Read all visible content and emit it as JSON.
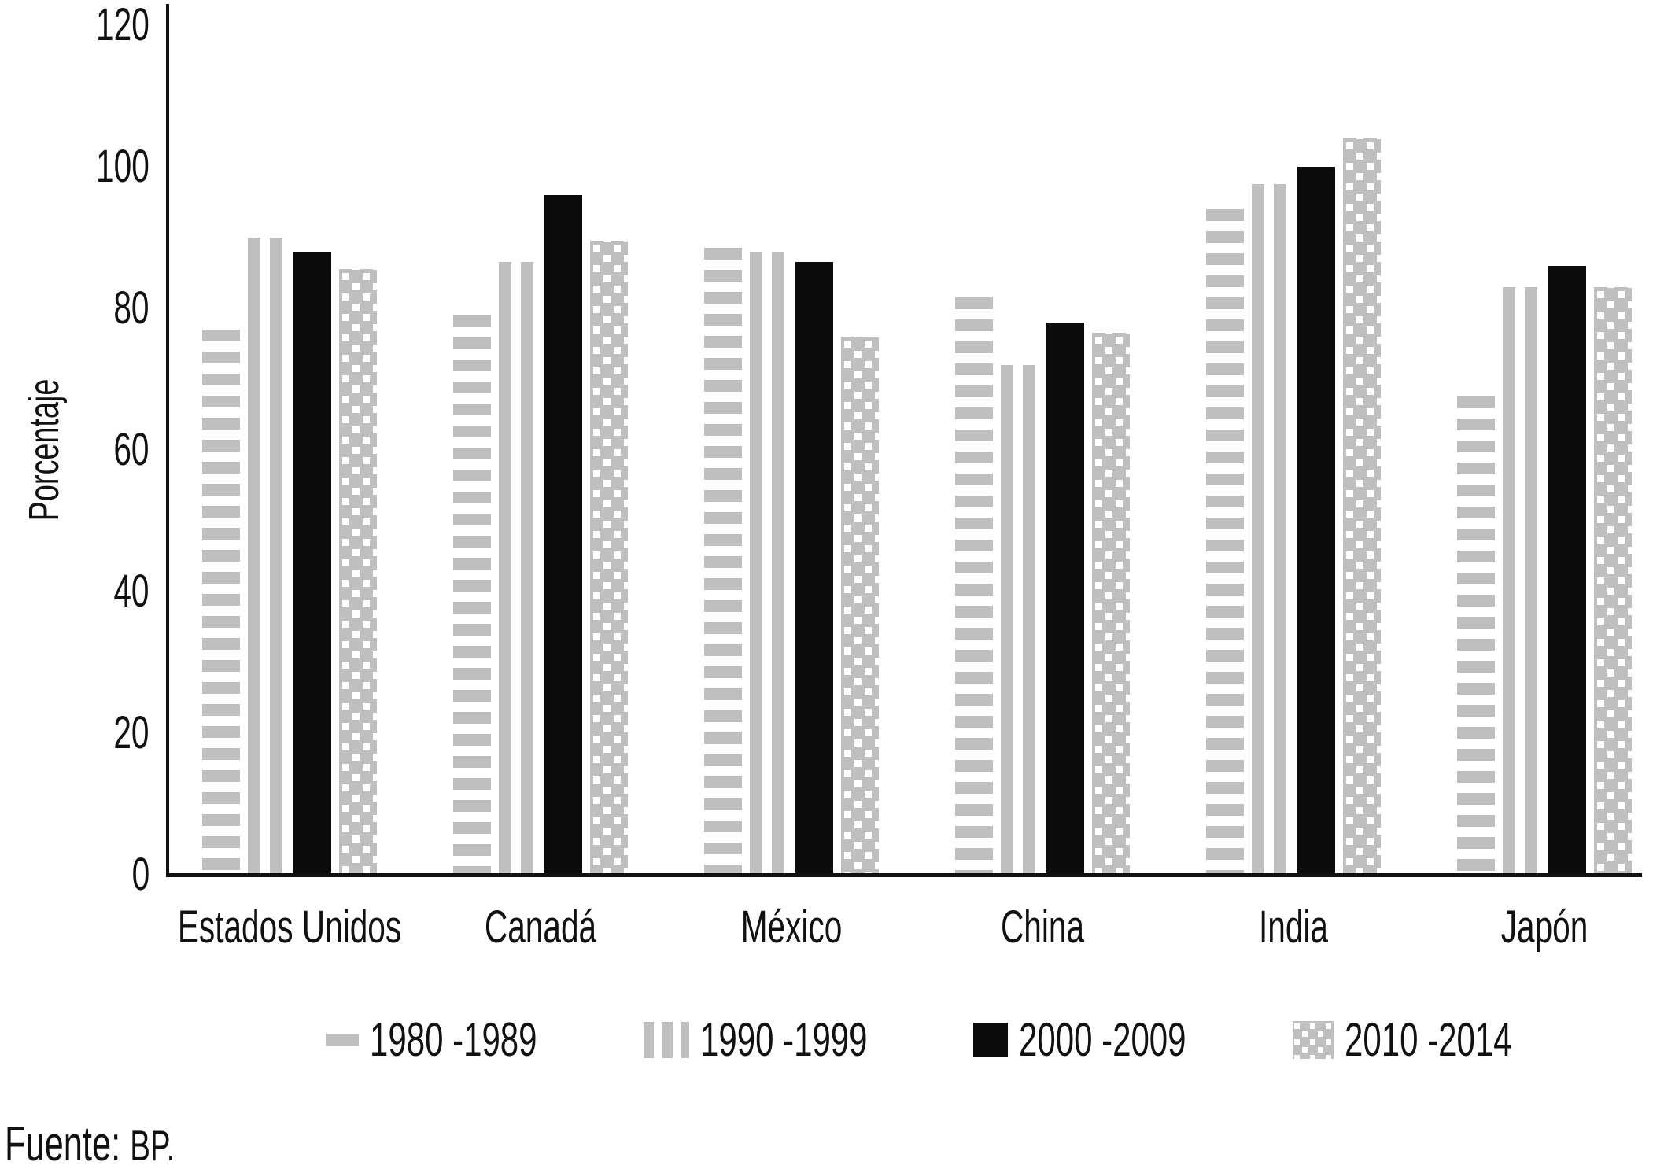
{
  "chart_data": {
    "type": "bar",
    "title": "",
    "xlabel": "",
    "ylabel": "Porcentaje",
    "categories": [
      "Estados Unidos",
      "Canadá",
      "México",
      "China",
      "India",
      "Japón"
    ],
    "series": [
      {
        "name": "1980 -1989",
        "pattern": "horizontal-stripes",
        "values": [
          77,
          79,
          88.5,
          81.5,
          94,
          67.5
        ]
      },
      {
        "name": "1990 -1999",
        "pattern": "vertical-stripes",
        "values": [
          90,
          86.5,
          88,
          72,
          97.5,
          83
        ]
      },
      {
        "name": "2000 -2009",
        "pattern": "solid-black",
        "values": [
          88,
          96,
          86.5,
          78,
          100,
          86
        ]
      },
      {
        "name": "2010 -2014",
        "pattern": "white-dots-on-gray",
        "values": [
          85.5,
          89.5,
          76,
          76.5,
          104,
          83
        ]
      }
    ],
    "ylim": [
      0,
      120
    ],
    "yticks": [
      0,
      20,
      40,
      60,
      80,
      100,
      120
    ],
    "grid": false,
    "legend_position": "bottom"
  },
  "source_note": {
    "prefix": "Fuente:",
    "text": "BP."
  },
  "colors": {
    "bar_gray": "#bfbfbf",
    "bar_black": "#0b0b0b",
    "axis": "#101010"
  }
}
